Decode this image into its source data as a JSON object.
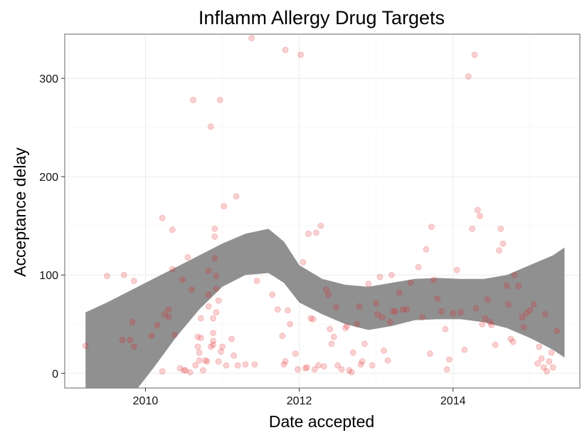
{
  "chart_data": {
    "type": "scatter",
    "title": "Inflamm Allergy Drug Targets",
    "xlabel": "Date accepted",
    "ylabel": "Acceptance delay",
    "xlim": [
      2008.95,
      2015.65
    ],
    "ylim": [
      -15,
      345
    ],
    "xticks": [
      2010,
      2012,
      2014
    ],
    "xtick_labels": [
      "2010",
      "2012",
      "2014"
    ],
    "yticks": [
      0,
      100,
      200,
      300
    ],
    "ytick_labels": [
      "0",
      "100",
      "200",
      "300"
    ],
    "grid": true,
    "point_color": "#e31a1c",
    "band_color": "#909090",
    "points": [
      [
        2009.22,
        28
      ],
      [
        2009.5,
        99
      ],
      [
        2009.7,
        34
      ],
      [
        2009.72,
        100
      ],
      [
        2009.8,
        34
      ],
      [
        2009.83,
        52
      ],
      [
        2009.85,
        94
      ],
      [
        2009.85,
        27
      ],
      [
        2010.08,
        38
      ],
      [
        2010.15,
        49
      ],
      [
        2010.22,
        2
      ],
      [
        2010.22,
        158
      ],
      [
        2010.25,
        60
      ],
      [
        2010.3,
        65
      ],
      [
        2010.3,
        57
      ],
      [
        2010.35,
        146
      ],
      [
        2010.35,
        106
      ],
      [
        2010.38,
        39
      ],
      [
        2010.45,
        5
      ],
      [
        2010.48,
        95
      ],
      [
        2010.5,
        3
      ],
      [
        2010.52,
        3
      ],
      [
        2010.55,
        118
      ],
      [
        2010.58,
        1
      ],
      [
        2010.6,
        85
      ],
      [
        2010.62,
        278
      ],
      [
        2010.65,
        8
      ],
      [
        2010.68,
        37
      ],
      [
        2010.68,
        27
      ],
      [
        2010.7,
        13
      ],
      [
        2010.7,
        21
      ],
      [
        2010.72,
        56
      ],
      [
        2010.72,
        36
      ],
      [
        2010.75,
        3
      ],
      [
        2010.78,
        13
      ],
      [
        2010.8,
        12
      ],
      [
        2010.82,
        104
      ],
      [
        2010.82,
        80
      ],
      [
        2010.82,
        68
      ],
      [
        2010.85,
        251
      ],
      [
        2010.85,
        27
      ],
      [
        2010.88,
        41
      ],
      [
        2010.88,
        33
      ],
      [
        2010.88,
        29
      ],
      [
        2010.88,
        56
      ],
      [
        2010.9,
        147
      ],
      [
        2010.9,
        139
      ],
      [
        2010.9,
        117
      ],
      [
        2010.92,
        86
      ],
      [
        2010.92,
        99
      ],
      [
        2010.92,
        62
      ],
      [
        2010.95,
        74
      ],
      [
        2010.95,
        12
      ],
      [
        2010.97,
        278
      ],
      [
        2010.98,
        22
      ],
      [
        2011.0,
        27
      ],
      [
        2011.02,
        170
      ],
      [
        2011.05,
        8
      ],
      [
        2011.12,
        35
      ],
      [
        2011.15,
        18
      ],
      [
        2011.18,
        180
      ],
      [
        2011.2,
        8
      ],
      [
        2011.3,
        9
      ],
      [
        2011.38,
        341
      ],
      [
        2011.42,
        9
      ],
      [
        2011.45,
        94
      ],
      [
        2011.65,
        80
      ],
      [
        2011.72,
        65
      ],
      [
        2011.78,
        38
      ],
      [
        2011.8,
        9
      ],
      [
        2011.82,
        12
      ],
      [
        2011.82,
        329
      ],
      [
        2011.85,
        64
      ],
      [
        2011.88,
        50
      ],
      [
        2011.95,
        20
      ],
      [
        2011.98,
        4
      ],
      [
        2012.02,
        324
      ],
      [
        2012.05,
        113
      ],
      [
        2012.08,
        5
      ],
      [
        2012.1,
        6
      ],
      [
        2012.12,
        142
      ],
      [
        2012.15,
        56
      ],
      [
        2012.18,
        55
      ],
      [
        2012.2,
        4
      ],
      [
        2012.22,
        143
      ],
      [
        2012.25,
        8
      ],
      [
        2012.28,
        150
      ],
      [
        2012.32,
        7
      ],
      [
        2012.35,
        85
      ],
      [
        2012.38,
        80
      ],
      [
        2012.4,
        45
      ],
      [
        2012.42,
        30
      ],
      [
        2012.45,
        37
      ],
      [
        2012.48,
        67
      ],
      [
        2012.5,
        8
      ],
      [
        2012.55,
        4
      ],
      [
        2012.6,
        46
      ],
      [
        2012.62,
        48
      ],
      [
        2012.65,
        3
      ],
      [
        2012.68,
        1
      ],
      [
        2012.7,
        21
      ],
      [
        2012.75,
        50
      ],
      [
        2012.78,
        68
      ],
      [
        2012.8,
        9
      ],
      [
        2012.82,
        12
      ],
      [
        2012.85,
        30
      ],
      [
        2012.9,
        91
      ],
      [
        2012.95,
        8
      ],
      [
        2013.0,
        71
      ],
      [
        2013.02,
        60
      ],
      [
        2013.05,
        98
      ],
      [
        2013.08,
        57
      ],
      [
        2013.1,
        23
      ],
      [
        2013.15,
        13
      ],
      [
        2013.18,
        52
      ],
      [
        2013.2,
        100
      ],
      [
        2013.22,
        63
      ],
      [
        2013.25,
        63
      ],
      [
        2013.3,
        82
      ],
      [
        2013.35,
        65
      ],
      [
        2013.4,
        65
      ],
      [
        2013.45,
        92
      ],
      [
        2013.55,
        108
      ],
      [
        2013.6,
        57
      ],
      [
        2013.65,
        126
      ],
      [
        2013.7,
        20
      ],
      [
        2013.72,
        149
      ],
      [
        2013.75,
        95
      ],
      [
        2013.8,
        76
      ],
      [
        2013.85,
        63
      ],
      [
        2013.9,
        45
      ],
      [
        2013.92,
        4
      ],
      [
        2013.95,
        14
      ],
      [
        2014.0,
        61
      ],
      [
        2014.05,
        105
      ],
      [
        2014.1,
        62
      ],
      [
        2014.15,
        24
      ],
      [
        2014.2,
        302
      ],
      [
        2014.25,
        147
      ],
      [
        2014.28,
        324
      ],
      [
        2014.3,
        66
      ],
      [
        2014.32,
        166
      ],
      [
        2014.35,
        160
      ],
      [
        2014.38,
        50
      ],
      [
        2014.42,
        56
      ],
      [
        2014.45,
        75
      ],
      [
        2014.48,
        52
      ],
      [
        2014.5,
        49
      ],
      [
        2014.55,
        29
      ],
      [
        2014.6,
        125
      ],
      [
        2014.62,
        147
      ],
      [
        2014.65,
        132
      ],
      [
        2014.7,
        89
      ],
      [
        2014.72,
        70
      ],
      [
        2014.75,
        35
      ],
      [
        2014.78,
        32
      ],
      [
        2014.8,
        100
      ],
      [
        2014.85,
        89
      ],
      [
        2014.9,
        57
      ],
      [
        2014.92,
        47
      ],
      [
        2014.95,
        61
      ],
      [
        2015.0,
        64
      ],
      [
        2015.05,
        70
      ],
      [
        2015.1,
        10
      ],
      [
        2015.12,
        27
      ],
      [
        2015.15,
        15
      ],
      [
        2015.18,
        6
      ],
      [
        2015.2,
        60
      ],
      [
        2015.22,
        2
      ],
      [
        2015.25,
        12
      ],
      [
        2015.28,
        21
      ],
      [
        2015.3,
        6
      ],
      [
        2015.35,
        43
      ]
    ],
    "smooth": {
      "x": [
        2009.22,
        2009.5,
        2009.8,
        2010.1,
        2010.4,
        2010.7,
        2011.0,
        2011.3,
        2011.6,
        2011.8,
        2012.0,
        2012.3,
        2012.6,
        2012.9,
        2013.2,
        2013.5,
        2013.8,
        2014.1,
        2014.4,
        2014.7,
        2015.0,
        2015.3,
        2015.45
      ],
      "upper": [
        62,
        72,
        84,
        96,
        108,
        120,
        132,
        142,
        147,
        134,
        110,
        96,
        90,
        88,
        92,
        96,
        97,
        96,
        96,
        100,
        110,
        120,
        128
      ],
      "lower": [
        -85,
        -55,
        -25,
        5,
        37,
        65,
        88,
        100,
        102,
        92,
        72,
        60,
        50,
        44,
        48,
        54,
        55,
        55,
        52,
        46,
        36,
        24,
        16
      ]
    }
  }
}
